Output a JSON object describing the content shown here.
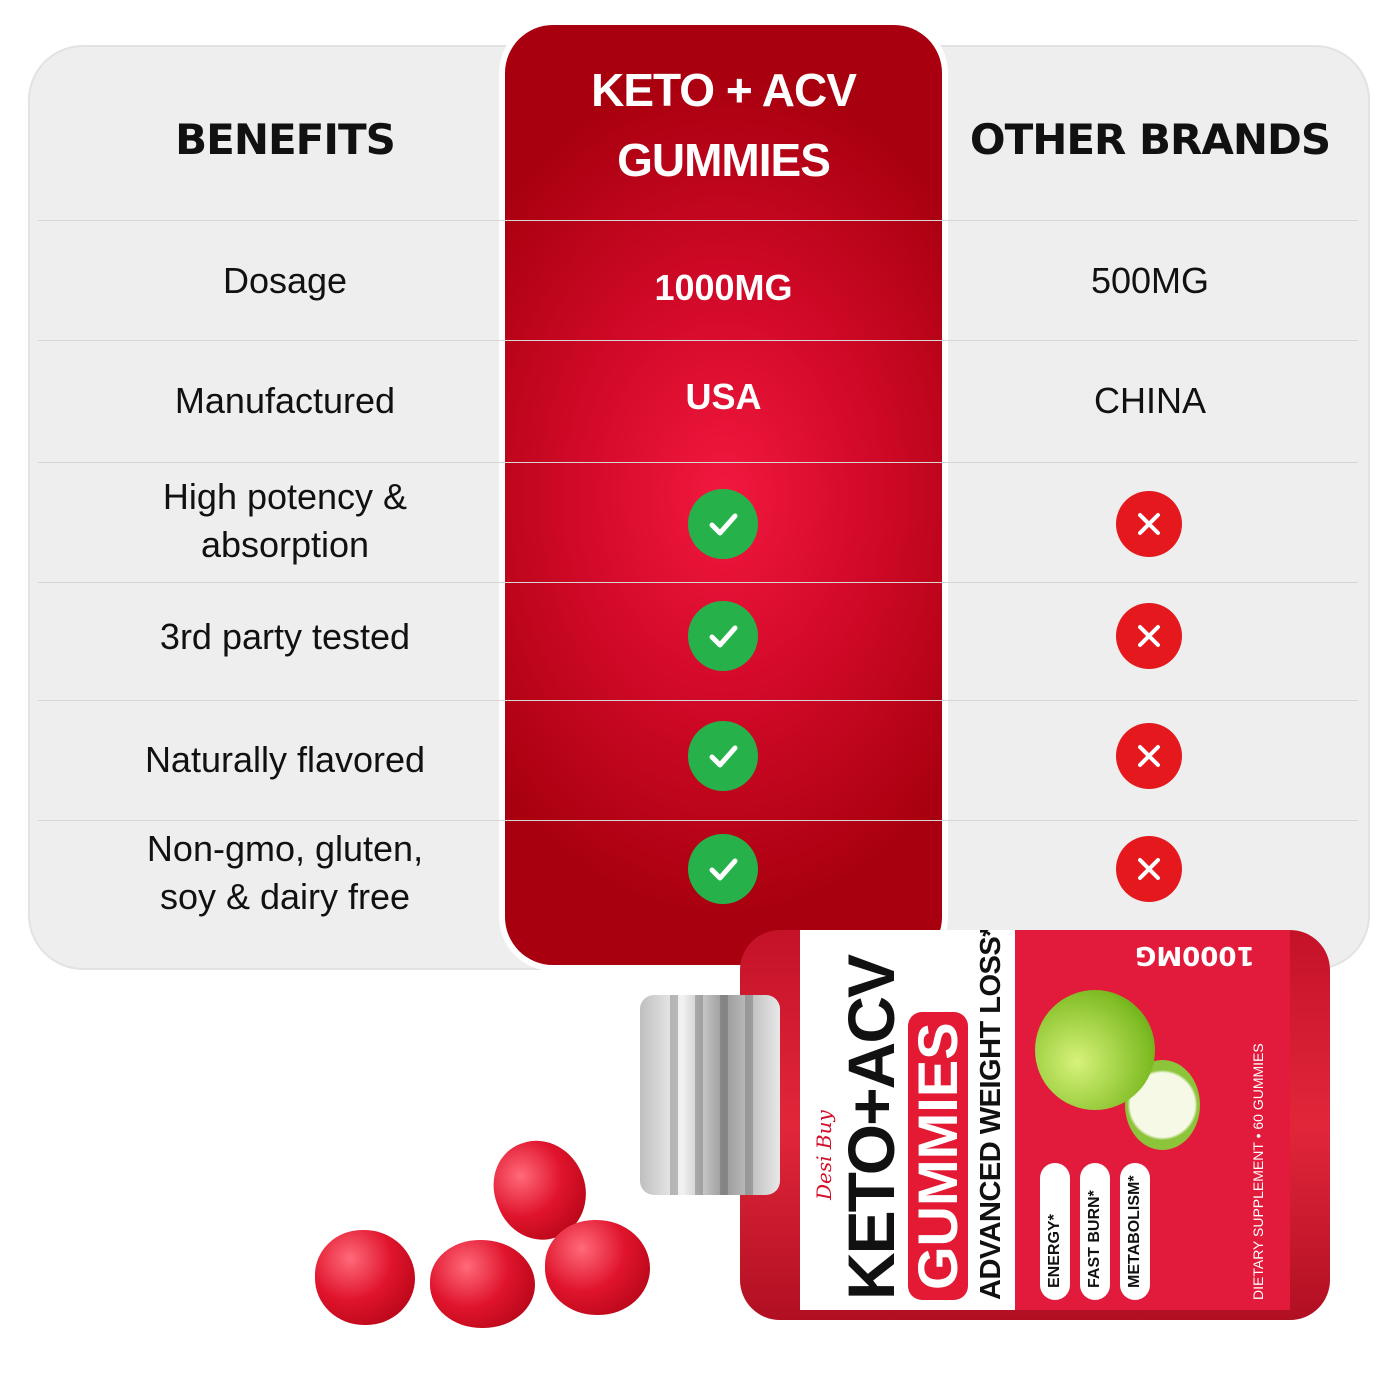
{
  "headers": {
    "benefits": "BENEFITS",
    "product": "KETO + ACV GUMMIES",
    "other": "OTHER BRANDS"
  },
  "rows": [
    {
      "benefit": "Dosage",
      "product": "1000MG",
      "other": "500MG"
    },
    {
      "benefit": "Manufactured",
      "product": "USA",
      "other": "CHINA"
    },
    {
      "benefit": "High potency & absorption",
      "product": "check",
      "other": "cross"
    },
    {
      "benefit": "3rd party tested",
      "product": "check",
      "other": "cross"
    },
    {
      "benefit": "Naturally flavored",
      "product": "check",
      "other": "cross"
    },
    {
      "benefit": "Non-gmo, gluten, soy & dairy free",
      "product": "check",
      "other": "cross"
    }
  ],
  "bottle": {
    "brand": "Desi Buy",
    "name": "KETO+ACV",
    "gummies": "GUMMIES",
    "tagline": "ADVANCED WEIGHT LOSS*",
    "dose": "1000MG",
    "pills": [
      "ENERGY*",
      "FAST BURN*",
      "METABOLISM*"
    ],
    "footer": "DIETARY SUPPLEMENT • 60 GUMMIES"
  },
  "colors": {
    "product_column": "#c8081f",
    "check": "#27b14a",
    "cross": "#e5181e",
    "panel": "#eeeeee"
  }
}
